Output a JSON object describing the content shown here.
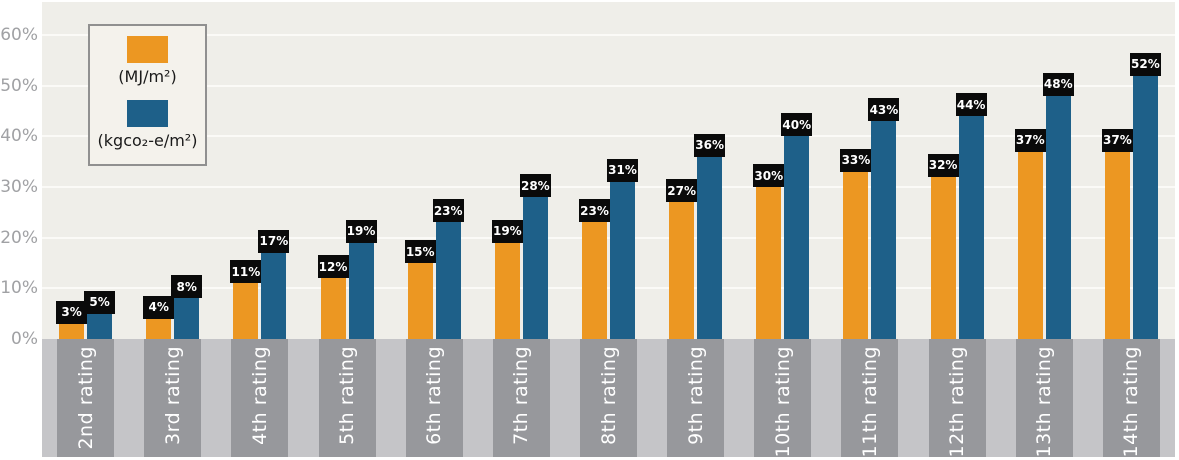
{
  "chart_data": {
    "type": "bar",
    "title": "",
    "xlabel": "",
    "ylabel": "",
    "categories": [
      "2nd rating",
      "3rd rating",
      "4th rating",
      "5th rating",
      "6th rating",
      "7th rating",
      "8th rating",
      "9th rating",
      "10th rating",
      "11th rating",
      "12th rating",
      "13th rating",
      "14th rating"
    ],
    "series": [
      {
        "name": "(MJ/m²)",
        "color": "#ec9722",
        "values": [
          3,
          4,
          11,
          12,
          15,
          19,
          23,
          27,
          30,
          33,
          32,
          37,
          37
        ]
      },
      {
        "name": "(kgco₂-e/m²)",
        "color": "#1e6089",
        "values": [
          5,
          8,
          17,
          19,
          23,
          28,
          31,
          36,
          40,
          43,
          44,
          48,
          52
        ]
      }
    ],
    "bar_labels": [
      [
        "3%",
        "5%"
      ],
      [
        "4%",
        "8%"
      ],
      [
        "11%",
        "17%"
      ],
      [
        "12%",
        "19%"
      ],
      [
        "15%",
        "23%"
      ],
      [
        "19%",
        "28%"
      ],
      [
        "23%",
        "31%"
      ],
      [
        "27%",
        "36%"
      ],
      [
        "30%",
        "40%"
      ],
      [
        "33%",
        "43%"
      ],
      [
        "32%",
        "44%"
      ],
      [
        "37%",
        "48%"
      ],
      [
        "37%",
        "52%"
      ]
    ],
    "ylim": [
      0,
      65
    ],
    "ytick_values": [
      0,
      10,
      20,
      30,
      40,
      50,
      60
    ],
    "ytick_labels": [
      "0%",
      "10%",
      "20%",
      "30%",
      "40%",
      "50%",
      "60%"
    ],
    "grid": true,
    "legend_position": "top-left"
  },
  "colors": {
    "plot_bg": "#efeee9",
    "grid": "#fbfaf7",
    "band_light": "#c5c5c8",
    "band_dark": "#97989c",
    "tick_text": "#a0a1a4",
    "bar_label_bg": "#0a0a0a",
    "bar_label_text": "#ffffff",
    "legend_bg": "#f4f2ec",
    "legend_border": "#909090",
    "series_mj": "#ec9722",
    "series_kgco2": "#1e6089"
  }
}
